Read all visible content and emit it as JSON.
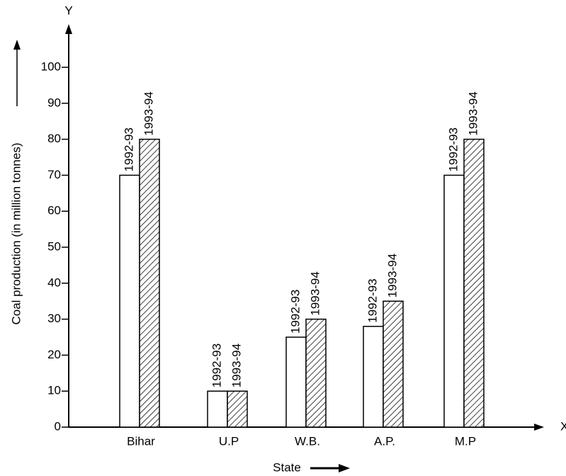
{
  "chart_data": {
    "type": "bar",
    "x_label": "X",
    "y_label": "Y",
    "x_title": "State",
    "y_title": "Coal production (in million tonnes)",
    "categories": [
      "Bihar",
      "U.P",
      "W.B.",
      "A.P.",
      "M.P"
    ],
    "series": [
      {
        "name": "1992-93",
        "color": "#ffffff",
        "hatch": false,
        "values": [
          70,
          10,
          25,
          28,
          70
        ]
      },
      {
        "name": "1993-94",
        "color": "#ffffff",
        "hatch": true,
        "values": [
          80,
          10,
          30,
          35,
          80
        ]
      }
    ],
    "ylim": [
      0,
      100
    ],
    "yticks": [
      0,
      10,
      20,
      30,
      40,
      50,
      60,
      70,
      80,
      90,
      100
    ],
    "grid": false
  }
}
